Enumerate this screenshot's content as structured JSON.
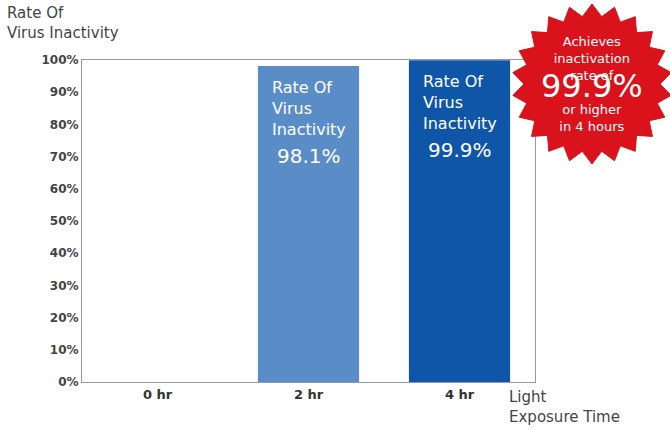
{
  "chart_data": {
    "type": "bar",
    "categories": [
      "0 hr",
      "2 hr",
      "4 hr"
    ],
    "values": [
      0,
      98.1,
      99.9
    ],
    "value_labels": [
      null,
      "98.1%",
      "99.9%"
    ],
    "data_labels": true,
    "colors": [
      "#5a8dc8",
      "#5a8dc8",
      "#0f55a8"
    ],
    "y_label": "Rate Of\nVirus Inactivity",
    "x_label": "Light\nExposure Time",
    "ylim": [
      0,
      100
    ],
    "yticks": [
      {
        "value": 0,
        "label": "0%"
      },
      {
        "value": 10,
        "label": "10%"
      },
      {
        "value": 20,
        "label": "20%"
      },
      {
        "value": 30,
        "label": "30%"
      },
      {
        "value": 40,
        "label": "40%"
      },
      {
        "value": 50,
        "label": "50%"
      },
      {
        "value": 60,
        "label": "60%"
      },
      {
        "value": 70,
        "label": "70%"
      },
      {
        "value": 80,
        "label": "80%"
      },
      {
        "value": 90,
        "label": "90%"
      },
      {
        "value": 100,
        "label": "100%"
      }
    ],
    "grid": false,
    "annotations": [
      {
        "text": "Rate Of\nVirus\nInactivity",
        "category": "2 hr"
      },
      {
        "text": "Rate Of\nVirus\nInactivity",
        "category": "4 hr"
      },
      {
        "text": "Achieves\ninactivation\nrate of\n99.9%\nor higher\nin 4 hours"
      }
    ]
  }
}
